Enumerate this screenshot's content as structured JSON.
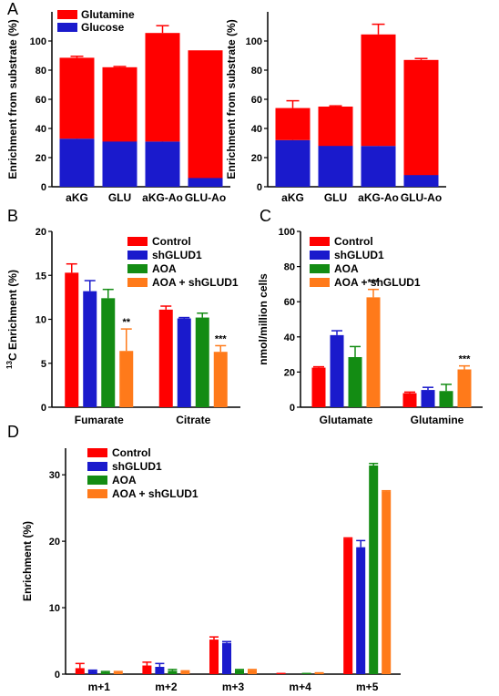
{
  "chart_data": [
    {
      "panel": "A",
      "type": "bar",
      "stacked": true,
      "categories": [
        "aKG",
        "GLU",
        "aKG-Ao",
        "GLU-Ao"
      ],
      "series": [
        {
          "name": "Glucose",
          "values": [
            33,
            31,
            31,
            6
          ],
          "err": [
            1,
            0,
            1,
            0
          ]
        },
        {
          "name": "Glutamine",
          "values": [
            55.5,
            51,
            74.5,
            87
          ],
          "err": [
            1,
            0.5,
            5,
            0
          ]
        }
      ],
      "ylabel": "Enrichment from substrate (%)",
      "ylim": [
        0,
        120
      ],
      "yticks": [
        0,
        20,
        40,
        60,
        80,
        100
      ],
      "legend": "top-left",
      "colors": {
        "Glutamine": "#ff0000",
        "Glucose": "#1a1acc"
      }
    },
    {
      "panel": "A2",
      "type": "bar",
      "stacked": true,
      "categories": [
        "aKG",
        "GLU",
        "aKG-Ao",
        "GLU-Ao"
      ],
      "series": [
        {
          "name": "Glucose",
          "values": [
            32,
            28,
            28,
            8
          ],
          "err": [
            2,
            0,
            13,
            0
          ]
        },
        {
          "name": "Glutamine",
          "values": [
            22,
            27,
            76.5,
            79
          ],
          "err": [
            5,
            0.5,
            7,
            1
          ]
        }
      ],
      "ylabel": "Enrichment from substrate (%)",
      "ylim": [
        0,
        120
      ],
      "yticks": [
        0,
        20,
        40,
        60,
        80,
        100
      ],
      "colors": {
        "Glutamine": "#ff0000",
        "Glucose": "#1a1acc"
      }
    },
    {
      "panel": "B",
      "type": "bar",
      "categories": [
        "Fumarate",
        "Citrate"
      ],
      "series": [
        {
          "name": "Control",
          "values": [
            15.3,
            11.1
          ],
          "err": [
            1.0,
            0.4
          ]
        },
        {
          "name": "shGLUD1",
          "values": [
            13.2,
            10.1
          ],
          "err": [
            1.2,
            0.1
          ]
        },
        {
          "name": "AOA",
          "values": [
            12.4,
            10.2
          ],
          "err": [
            1.0,
            0.5
          ]
        },
        {
          "name": "AOA + shGLUD1",
          "values": [
            6.4,
            6.3
          ],
          "err": [
            2.5,
            0.7
          ]
        }
      ],
      "annotations": [
        {
          "category": "Fumarate",
          "series": "AOA + shGLUD1",
          "text": "**"
        },
        {
          "category": "Citrate",
          "series": "AOA + shGLUD1",
          "text": "***"
        }
      ],
      "ylabel_pre": "13",
      "ylabel": "C Enrichment (%)",
      "ylim": [
        0,
        20
      ],
      "yticks": [
        0,
        5,
        10,
        15,
        20
      ],
      "legend": "top-right"
    },
    {
      "panel": "C",
      "type": "bar",
      "categories": [
        "Glutamate",
        "Glutamine"
      ],
      "series": [
        {
          "name": "Control",
          "values": [
            22.5,
            8.0
          ],
          "err": [
            0.5,
            0.6
          ]
        },
        {
          "name": "shGLUD1",
          "values": [
            41.0,
            9.8
          ],
          "err": [
            2.5,
            1.5
          ]
        },
        {
          "name": "AOA",
          "values": [
            28.5,
            9.2
          ],
          "err": [
            6.0,
            3.8
          ]
        },
        {
          "name": "AOA + shGLUD1",
          "values": [
            62.5,
            21.5
          ],
          "err": [
            4.5,
            2.0
          ]
        }
      ],
      "annotations": [
        {
          "category": "Glutamate",
          "series": "AOA + shGLUD1",
          "text": "***"
        },
        {
          "category": "Glutamine",
          "series": "AOA + shGLUD1",
          "text": "***"
        }
      ],
      "ylabel": "nmol/million cells",
      "ylim": [
        0,
        100
      ],
      "yticks": [
        0,
        20,
        40,
        60,
        80,
        100
      ],
      "legend": "top-left"
    },
    {
      "panel": "D",
      "type": "bar",
      "categories": [
        "m+1",
        "m+2",
        "m+3",
        "m+4",
        "m+5"
      ],
      "series": [
        {
          "name": "Control",
          "values": [
            0.9,
            1.3,
            5.2,
            0.2,
            20.4
          ],
          "err": [
            0.7,
            0.5,
            0.4,
            0.0,
            0.1
          ]
        },
        {
          "name": "shGLUD1",
          "values": [
            0.5,
            1.1,
            4.7,
            0.0,
            19.1
          ],
          "err": [
            0.1,
            0.5,
            0.2,
            0.0,
            1.0
          ]
        },
        {
          "name": "AOA",
          "values": [
            0.3,
            0.5,
            0.6,
            0.2,
            31.4
          ],
          "err": [
            0.1,
            0.2,
            0.1,
            0.0,
            0.3
          ]
        },
        {
          "name": "AOA + shGLUD1",
          "values": [
            0.3,
            0.4,
            0.6,
            0.3,
            27.5
          ],
          "err": [
            0.1,
            0.1,
            0.1,
            0.0,
            0.1
          ]
        }
      ],
      "ylabel": "Enrichment (%)",
      "ylim": [
        0,
        34
      ],
      "yticks": [
        0,
        10,
        20,
        30
      ],
      "legend": "top-left"
    }
  ],
  "panels": {
    "a": "A",
    "b": "B",
    "c": "C",
    "d": "D"
  },
  "colors": {
    "Control": "#ff0000",
    "shGLUD1": "#1a1acc",
    "AOA": "#138c13",
    "AOA + shGLUD1": "#ff7a1a",
    "Glutamine": "#ff0000",
    "Glucose": "#1a1acc"
  }
}
